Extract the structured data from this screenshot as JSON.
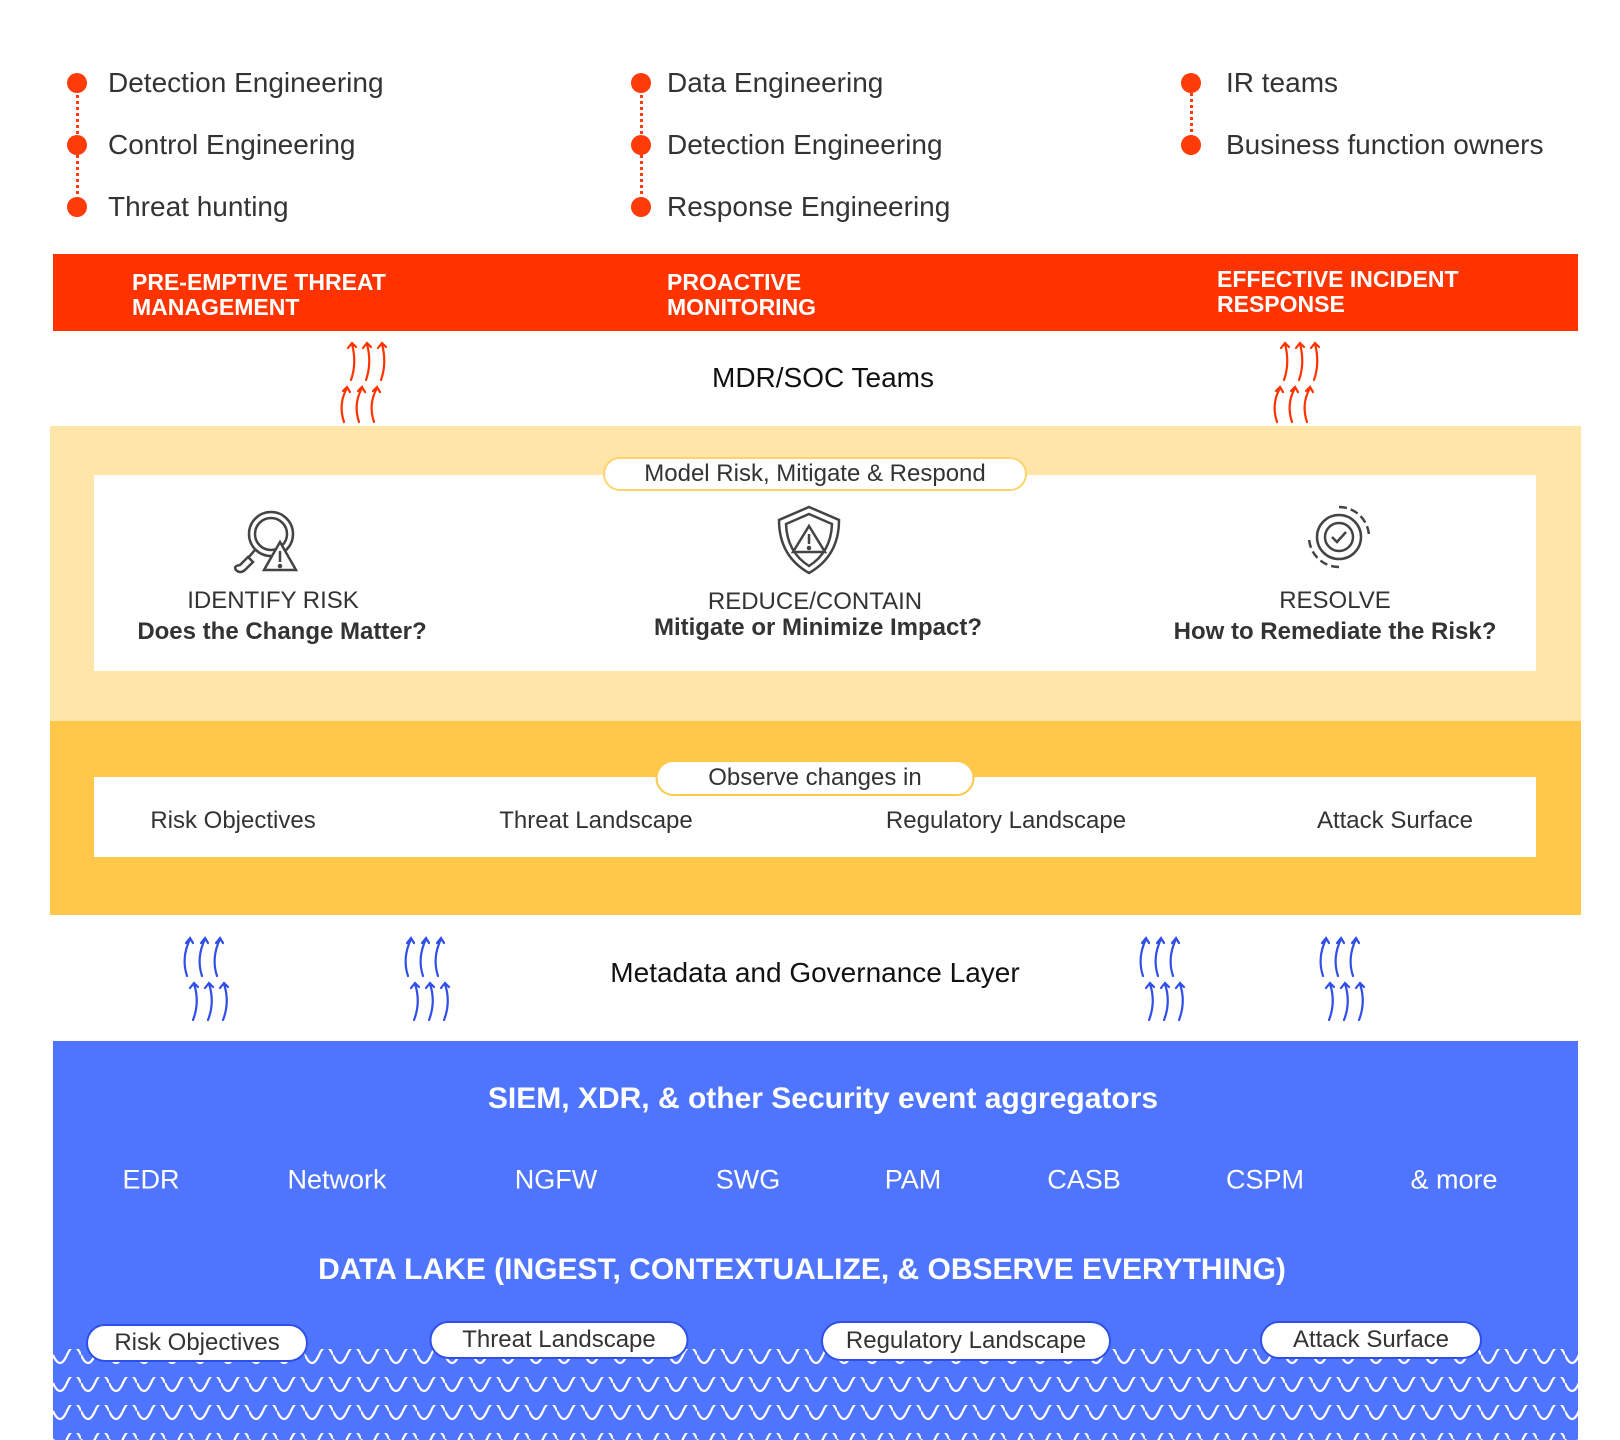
{
  "roles": [
    {
      "items": [
        "Detection Engineering",
        "Control Engineering",
        "Threat hunting"
      ]
    },
    {
      "items": [
        "Data Engineering",
        "Detection Engineering",
        "Response Engineering"
      ]
    },
    {
      "items": [
        "IR teams",
        "Business function owners"
      ]
    }
  ],
  "outcomes": [
    "PRE-EMPTIVE THREAT MANAGEMENT",
    "PROACTIVE MONITORING",
    "EFFECTIVE INCIDENT RESPONSE"
  ],
  "mdr_label": "MDR/SOC Teams",
  "model": {
    "pill": "Model Risk, Mitigate & Respond",
    "steps": [
      {
        "icon": "magnifier-warning-icon",
        "title": "IDENTIFY RISK",
        "question": "Does the Change Matter?"
      },
      {
        "icon": "shield-warning-icon",
        "title": "REDUCE/CONTAIN",
        "question": "Mitigate or Minimize Impact?"
      },
      {
        "icon": "gear-check-icon",
        "title": "RESOLVE",
        "question": "How to Remediate the Risk?"
      }
    ]
  },
  "observe": {
    "pill": "Observe changes in",
    "items": [
      "Risk Objectives",
      "Threat Landscape",
      "Regulatory Landscape",
      "Attack Surface"
    ]
  },
  "metadata_label": "Metadata and Governance Layer",
  "aggregators": {
    "title": "SIEM, XDR, & other Security event aggregators",
    "sources": [
      "EDR",
      "Network",
      "NGFW",
      "SWG",
      "PAM",
      "CASB",
      "CSPM",
      "& more"
    ]
  },
  "data_lake": {
    "title": "DATA LAKE (INGEST, CONTEXTUALIZE, & OBSERVE EVERYTHING)",
    "pills": [
      "Risk Objectives",
      "Threat Landscape",
      "Regulatory Landscape",
      "Attack Surface"
    ]
  },
  "colors": {
    "accent_red": "#ff3300",
    "light_yellow": "#ffe6a8",
    "yellow": "#ffc84a",
    "blue": "#4f75ff",
    "blue_arrow": "#2f4fe8"
  }
}
